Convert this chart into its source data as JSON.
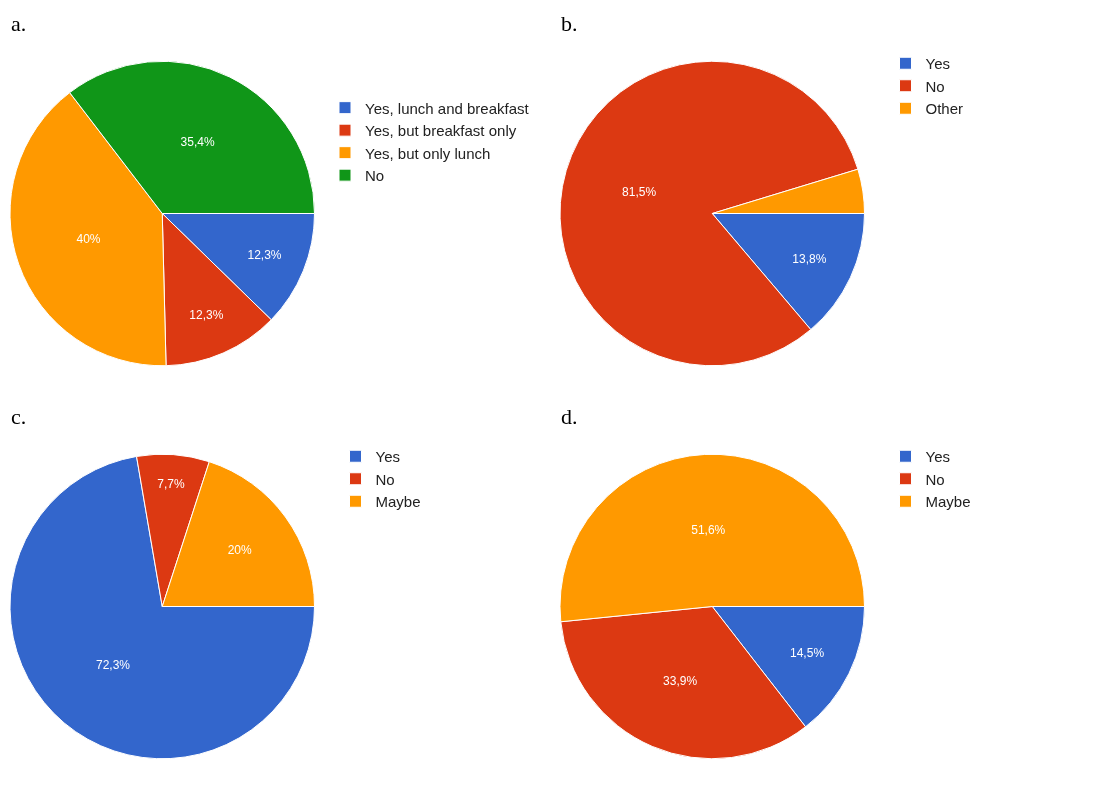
{
  "chart_data": [
    {
      "type": "pie",
      "title": "a.",
      "categories": [
        "Yes, lunch and breakfast",
        "Yes, but breakfast only",
        "Yes, but only lunch",
        "No"
      ],
      "values": [
        12.3,
        12.3,
        40,
        35.4
      ],
      "colors": [
        "#3366cc",
        "#dc3912",
        "#ff9900",
        "#109618"
      ],
      "value_labels": [
        "12,3%",
        "12,3%",
        "40%",
        "35,4%"
      ],
      "legend": "right"
    },
    {
      "type": "pie",
      "title": "b.",
      "categories": [
        "Yes",
        "No",
        "Other"
      ],
      "values": [
        13.8,
        81.5,
        4.7
      ],
      "colors": [
        "#3366cc",
        "#dc3912",
        "#ff9900"
      ],
      "value_labels": [
        "13,8%",
        "81,5%",
        null
      ],
      "legend": "top right"
    },
    {
      "type": "pie",
      "title": "c.",
      "categories": [
        "Yes",
        "No",
        "Maybe"
      ],
      "values": [
        72.3,
        7.7,
        20
      ],
      "colors": [
        "#3366cc",
        "#dc3912",
        "#ff9900"
      ],
      "value_labels": [
        "72,3%",
        "7,7%",
        "20%"
      ],
      "legend": "top right"
    },
    {
      "type": "pie",
      "title": "d.",
      "categories": [
        "Yes",
        "No",
        "Maybe"
      ],
      "values": [
        14.5,
        33.9,
        51.6
      ],
      "colors": [
        "#3366cc",
        "#dc3912",
        "#ff9900"
      ],
      "value_labels": [
        "14,5%",
        "33,9%",
        "51,6%"
      ],
      "legend": "top right"
    }
  ]
}
